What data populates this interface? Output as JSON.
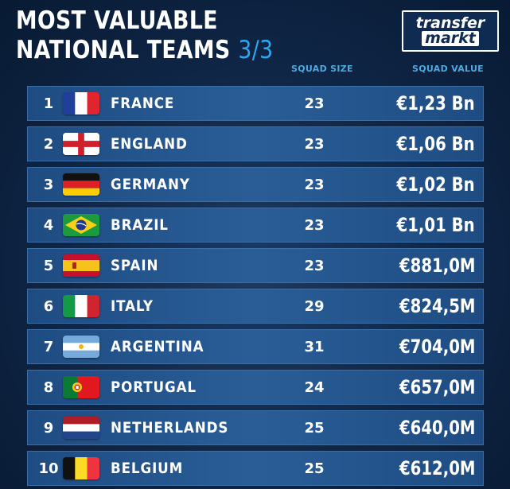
{
  "header": {
    "title_line1": "MOST VALUABLE",
    "title_line2": "NATIONAL TEAMS",
    "page_indicator": "3/3"
  },
  "logo": {
    "line1": "transfer",
    "line2": "markt"
  },
  "columns": {
    "squad_size": "SQUAD SIZE",
    "squad_value": "SQUAD VALUE"
  },
  "teams": [
    {
      "rank": "1",
      "country": "FRANCE",
      "squad_size": "23",
      "squad_value": "€1,23 Bn",
      "flag": "france-flag"
    },
    {
      "rank": "2",
      "country": "ENGLAND",
      "squad_size": "23",
      "squad_value": "€1,06 Bn",
      "flag": "england-flag"
    },
    {
      "rank": "3",
      "country": "GERMANY",
      "squad_size": "23",
      "squad_value": "€1,02 Bn",
      "flag": "germany-flag"
    },
    {
      "rank": "4",
      "country": "BRAZIL",
      "squad_size": "23",
      "squad_value": "€1,01 Bn",
      "flag": "brazil-flag"
    },
    {
      "rank": "5",
      "country": "SPAIN",
      "squad_size": "23",
      "squad_value": "€881,0M",
      "flag": "spain-flag"
    },
    {
      "rank": "6",
      "country": "ITALY",
      "squad_size": "29",
      "squad_value": "€824,5M",
      "flag": "italy-flag"
    },
    {
      "rank": "7",
      "country": "ARGENTINA",
      "squad_size": "31",
      "squad_value": "€704,0M",
      "flag": "argentina-flag"
    },
    {
      "rank": "8",
      "country": "PORTUGAL",
      "squad_size": "24",
      "squad_value": "€657,0M",
      "flag": "portugal-flag"
    },
    {
      "rank": "9",
      "country": "NETHERLANDS",
      "squad_size": "25",
      "squad_value": "€640,0M",
      "flag": "netherlands-flag"
    },
    {
      "rank": "10",
      "country": "BELGIUM",
      "squad_size": "25",
      "squad_value": "€612,0M",
      "flag": "belgium-flag"
    }
  ],
  "colors": {
    "accent": "#2ea6ee",
    "row": "#2a5d97",
    "background": "#0f2545"
  }
}
